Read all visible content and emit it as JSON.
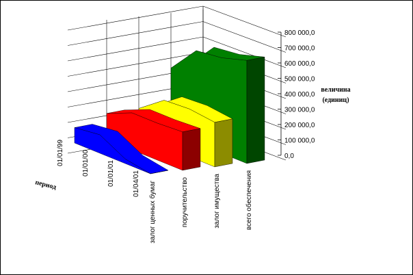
{
  "chart_data": {
    "type": "area",
    "subtype": "3d-area",
    "title": "",
    "series_axis_title": "период",
    "value_axis_title_line1": "величина",
    "value_axis_title_line2": "(единиц)",
    "periods": [
      "01/01/99",
      "01/01/00",
      "01/01/01",
      "01/04/01"
    ],
    "categories": [
      "залог ценных бумаг",
      "поручительство",
      "залог имущества",
      "всего обеспечения"
    ],
    "value_axis": {
      "min": 0,
      "max": 800000,
      "step": 100000,
      "tick_labels": [
        "0,0",
        "100 000,0",
        "200 000,0",
        "300 000,0",
        "400 000,0",
        "500 000,0",
        "600 000,0",
        "700 000,0",
        "800 000,0"
      ]
    },
    "series": [
      {
        "name": "залог ценных бумаг",
        "color": "#0000ff",
        "values": [
          100000,
          120000,
          30000,
          0
        ]
      },
      {
        "name": "поручительство",
        "color": "#ff0000",
        "values": [
          170000,
          240000,
          240000,
          250000
        ]
      },
      {
        "name": "залог имущества",
        "color": "#ffff00",
        "values": [
          180000,
          300000,
          310000,
          290000
        ]
      },
      {
        "name": "всего обеспечения",
        "color": "#008000",
        "values": [
          420000,
          600000,
          620000,
          670000
        ]
      }
    ],
    "grid": true,
    "legend": "none"
  }
}
